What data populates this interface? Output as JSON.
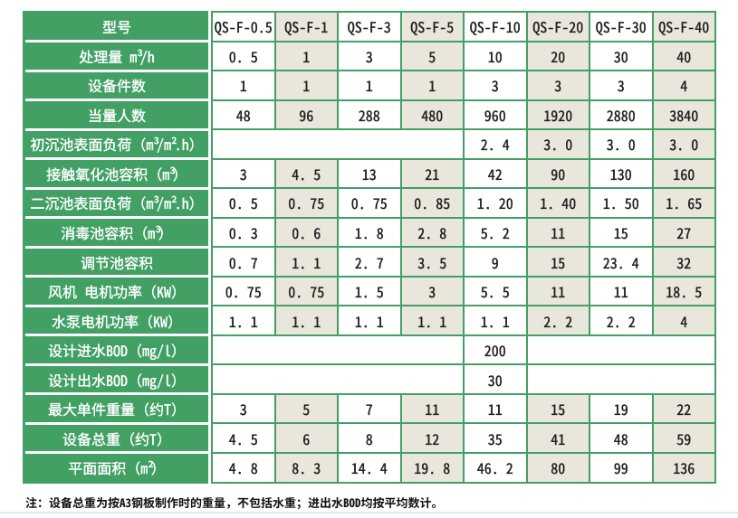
{
  "page": {
    "background": "#ffffff",
    "bottom_rule_color": "#e8e8e8"
  },
  "colors": {
    "green": "#42a065",
    "beige": "#e9e6dc",
    "white_cell": "#ffffff",
    "label_text": "#ffffff",
    "value_text": "#1f1f1f",
    "separator_white": "#ffffff"
  },
  "table": {
    "corner_label": "型号",
    "columns": [
      "QS-F-0.5",
      "QS-F-1",
      "QS-F-3",
      "QS-F-5",
      "QS-F-10",
      "QS-F-20",
      "QS-F-30",
      "QS-F-40"
    ],
    "rows": [
      {
        "label": "处理量 m³/h",
        "cells": [
          "0.5",
          "1",
          "3",
          "5",
          "10",
          "20",
          "30",
          "40"
        ]
      },
      {
        "label": "设备件数",
        "cells": [
          "1",
          "1",
          "1",
          "1",
          "3",
          "3",
          "3",
          "4"
        ]
      },
      {
        "label": "当量人数",
        "cells": [
          "48",
          "96",
          "288",
          "480",
          "960",
          "1920",
          "2880",
          "3840"
        ]
      },
      {
        "label": "初沉池表面负荷（m³/m².h）",
        "cells": [
          {
            "span": 4,
            "text": ""
          },
          "2.4",
          "3.0",
          "3.0",
          "3.0"
        ]
      },
      {
        "label": "接触氧化池容积（m³）",
        "cells": [
          "3",
          "4.5",
          "13",
          "21",
          "42",
          "90",
          "130",
          "160"
        ]
      },
      {
        "label": "二沉池表面负荷（m³/m².h）",
        "cells": [
          "0.5",
          "0.75",
          "0.75",
          "0.85",
          "1.20",
          "1.40",
          "1.50",
          "1.65"
        ]
      },
      {
        "label": "消毒池容积（m³）",
        "cells": [
          "0.3",
          "0.6",
          "1.8",
          "2.8",
          "5.2",
          "11",
          "15",
          "27"
        ]
      },
      {
        "label": "调节池容积",
        "cells": [
          "0.7",
          "1.1",
          "2.7",
          "3.5",
          "9",
          "15",
          "23.4",
          "32"
        ]
      },
      {
        "label": "风机 电机功率（KW）",
        "cells": [
          "0.75",
          "0.75",
          "1.5",
          "3",
          "5.5",
          "11",
          "11",
          "18.5"
        ]
      },
      {
        "label": "水泵电机功率（KW）",
        "cells": [
          "1.1",
          "1.1",
          "1.1",
          "1.1",
          "1.1",
          "2.2",
          "2.2",
          "4"
        ]
      },
      {
        "label": "设计进水BOD（mg/l）",
        "cells": [
          {
            "span": 4,
            "text": ""
          },
          "200",
          {
            "span": 3,
            "text": ""
          }
        ]
      },
      {
        "label": "设计出水BOD（mg/l）",
        "cells": [
          {
            "span": 4,
            "text": ""
          },
          "30",
          {
            "span": 3,
            "text": ""
          }
        ]
      },
      {
        "label": "最大单件重量（约T）",
        "cells": [
          "3",
          "5",
          "7",
          "11",
          "11",
          "15",
          "19",
          "22"
        ]
      },
      {
        "label": "设备总重（约T）",
        "cells": [
          "4.5",
          "6",
          "8",
          "12",
          "35",
          "41",
          "48",
          "59"
        ]
      },
      {
        "label": "平面面积（m²）",
        "cells": [
          "4.8",
          "8.3",
          "14.4",
          "19.8",
          "46.2",
          "80",
          "99",
          "136"
        ]
      }
    ]
  },
  "note": {
    "text": "注：设备总重为按A3钢板制作时的重量，不包括水重；进出水BOD均按平均数计。"
  }
}
